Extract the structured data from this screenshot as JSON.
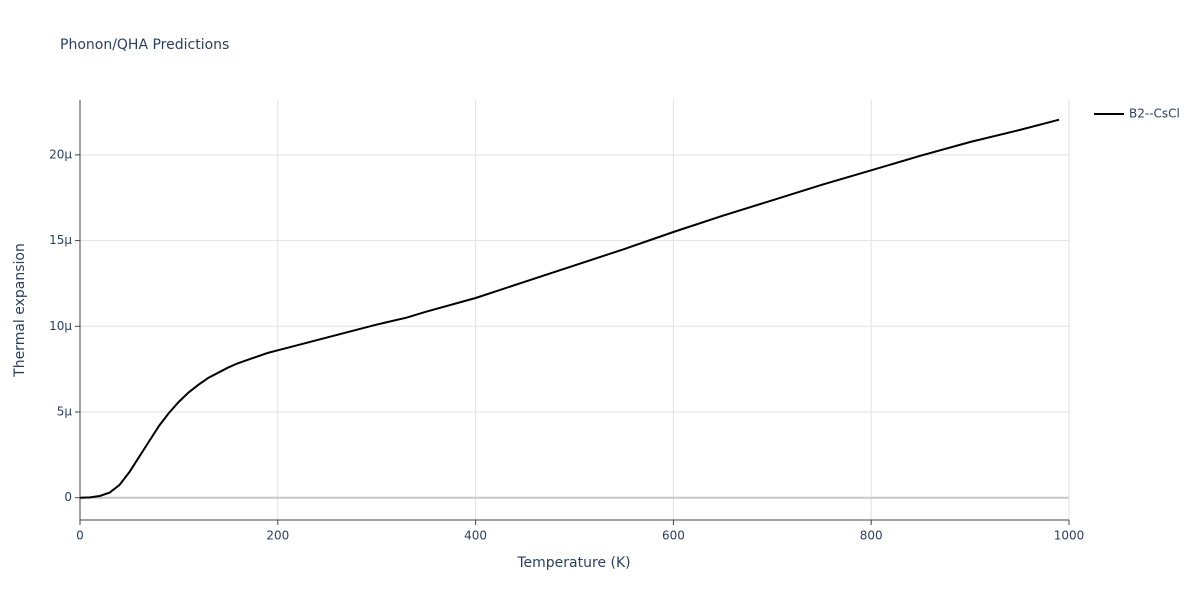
{
  "chart_data": {
    "type": "line",
    "title": "Phonon/QHA Predictions",
    "x_label": "Temperature (K)",
    "y_label": "Thermal expansion",
    "x": [
      0,
      10,
      20,
      30,
      40,
      50,
      60,
      70,
      80,
      90,
      100,
      110,
      120,
      130,
      140,
      150,
      160,
      170,
      180,
      190,
      200,
      250,
      300,
      330,
      350,
      400,
      450,
      500,
      550,
      600,
      650,
      700,
      750,
      800,
      850,
      900,
      950,
      990
    ],
    "series": [
      {
        "name": "B2--CsCl",
        "color": "#000000",
        "values": [
          0,
          2e-08,
          1e-07,
          3e-07,
          7.5e-07,
          1.5e-06,
          2.4e-06,
          3.3e-06,
          4.2e-06,
          4.95e-06,
          5.6e-06,
          6.15e-06,
          6.6e-06,
          7e-06,
          7.3e-06,
          7.6e-06,
          7.85e-06,
          8.05e-06,
          8.25e-06,
          8.45e-06,
          8.6e-06,
          9.35e-06,
          1.01e-05,
          1.05e-05,
          1.085e-05,
          1.165e-05,
          1.26e-05,
          1.355e-05,
          1.45e-05,
          1.55e-05,
          1.645e-05,
          1.735e-05,
          1.825e-05,
          1.91e-05,
          1.995e-05,
          2.075e-05,
          2.145e-05,
          2.205e-05
        ]
      }
    ],
    "xlim": [
      0,
      1000
    ],
    "xticks": [
      0,
      200,
      400,
      600,
      800,
      1000
    ],
    "ylim": [
      -1.3e-06,
      2.32e-05
    ],
    "yticks": [
      0,
      {
        "value": 5e-06,
        "label": "5μ"
      },
      {
        "value": 1e-05,
        "label": "10μ"
      },
      {
        "value": 1.5e-05,
        "label": "15μ"
      },
      {
        "value": 2e-05,
        "label": "20μ"
      }
    ],
    "grid": true,
    "legend": "top-right"
  }
}
